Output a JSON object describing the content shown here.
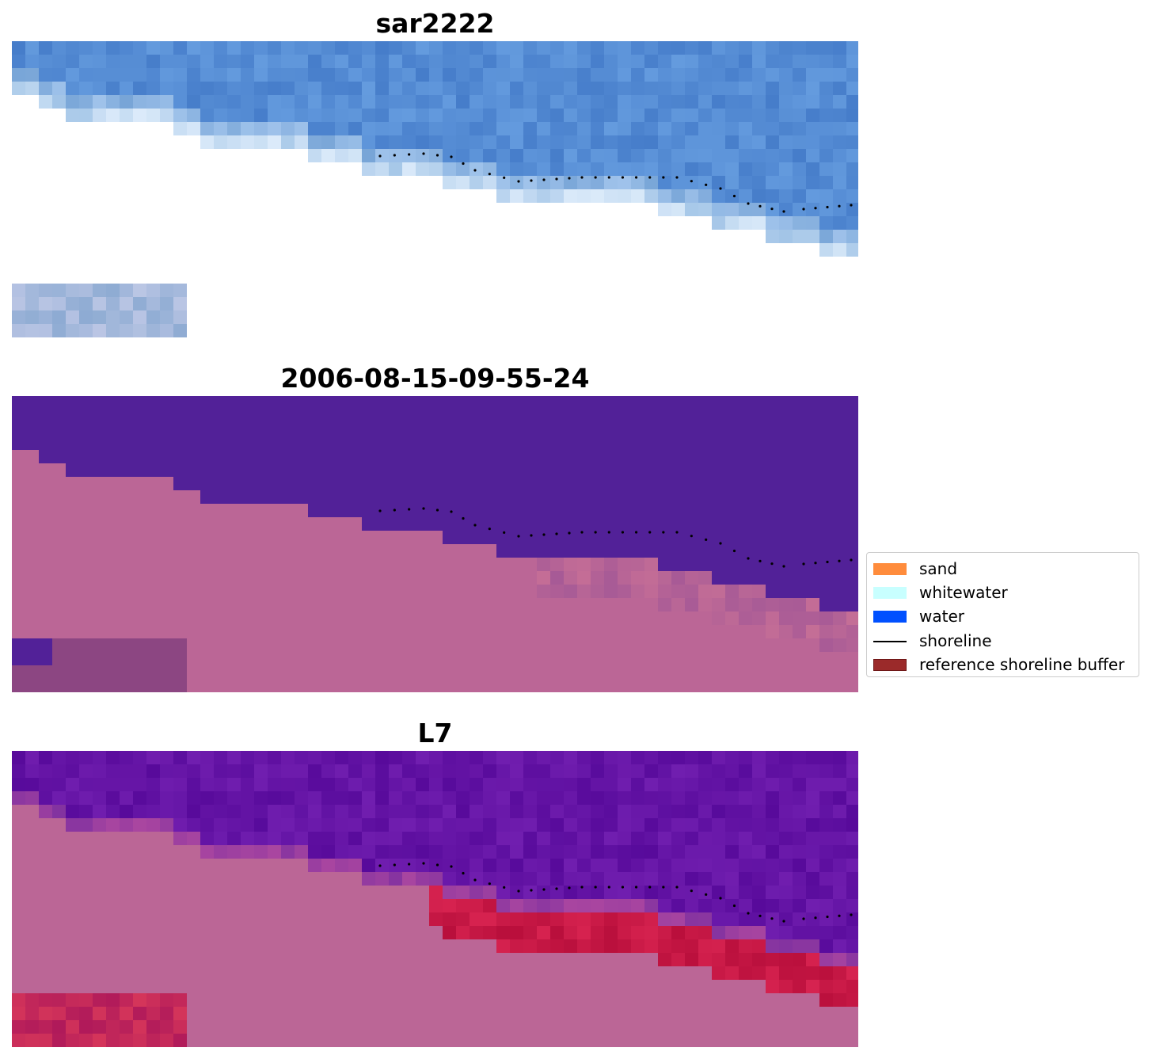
{
  "panels": [
    {
      "title": "sar2222",
      "style": "rgb",
      "icon": "false-colour-rgb-image"
    },
    {
      "title": "2006-08-15-09-55-24",
      "style": "classified",
      "icon": "classified-overlay-image"
    },
    {
      "title": "L7",
      "style": "index",
      "icon": "spectral-index-image"
    }
  ],
  "legend": {
    "items": [
      {
        "label": "sand",
        "color": "#ff8c3c",
        "kind": "patch"
      },
      {
        "label": "whitewater",
        "color": "#c8ffff",
        "kind": "patch"
      },
      {
        "label": "water",
        "color": "#0050ff",
        "kind": "patch"
      },
      {
        "label": "shoreline",
        "color": "#000000",
        "kind": "line"
      },
      {
        "label": "reference shoreline buffer",
        "color": "#9b2a2a",
        "kind": "patch"
      }
    ]
  },
  "colors": {
    "water_class": "#522198",
    "land_class": "#bb6696",
    "no_data": "#ffffff",
    "shoreline_points": "#000000"
  }
}
